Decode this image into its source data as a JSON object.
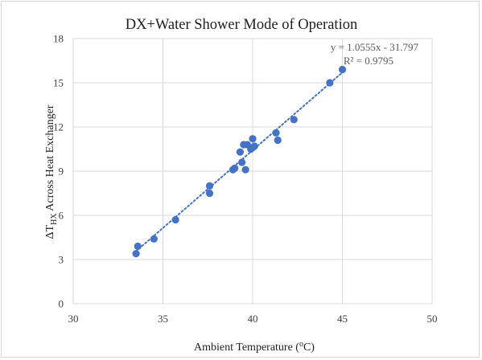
{
  "chart_data": {
    "type": "scatter",
    "title": "DX+Water Shower Mode of Operation",
    "xlabel": {
      "main": "Ambient Temperature (",
      "sup": "o",
      "tail": "C)"
    },
    "ylabel": {
      "main": "ΔT",
      "sub": "HX",
      "tail": " Across Heat Exchanger"
    },
    "xlim": [
      30,
      50
    ],
    "ylim": [
      0,
      18
    ],
    "xticks": [
      30,
      35,
      40,
      45,
      50
    ],
    "yticks": [
      0,
      3,
      6,
      9,
      12,
      15,
      18
    ],
    "grid": true,
    "legend": "none",
    "marker_color": "#4472c4",
    "gridline_color": "#d9d9d9",
    "trendline": {
      "type": "linear",
      "slope": 1.0555,
      "intercept": -31.797,
      "equation_label": "y = 1.0555x - 31.797",
      "r_squared_label": "R² = 0.9795",
      "style": "dotted",
      "color": "#4472c4"
    },
    "points": [
      {
        "x": 33.5,
        "y": 3.4
      },
      {
        "x": 33.6,
        "y": 3.9
      },
      {
        "x": 34.5,
        "y": 4.4
      },
      {
        "x": 35.7,
        "y": 5.7
      },
      {
        "x": 37.6,
        "y": 7.5
      },
      {
        "x": 37.6,
        "y": 8.0
      },
      {
        "x": 38.9,
        "y": 9.1
      },
      {
        "x": 39.0,
        "y": 9.2
      },
      {
        "x": 39.4,
        "y": 9.6
      },
      {
        "x": 39.3,
        "y": 10.3
      },
      {
        "x": 39.6,
        "y": 9.1
      },
      {
        "x": 39.5,
        "y": 10.8
      },
      {
        "x": 39.7,
        "y": 10.8
      },
      {
        "x": 39.9,
        "y": 10.5
      },
      {
        "x": 40.0,
        "y": 10.6
      },
      {
        "x": 40.1,
        "y": 10.7
      },
      {
        "x": 40.0,
        "y": 11.2
      },
      {
        "x": 41.3,
        "y": 11.6
      },
      {
        "x": 41.4,
        "y": 11.1
      },
      {
        "x": 42.3,
        "y": 12.5
      },
      {
        "x": 44.3,
        "y": 15.0
      },
      {
        "x": 45.0,
        "y": 15.9
      }
    ]
  }
}
